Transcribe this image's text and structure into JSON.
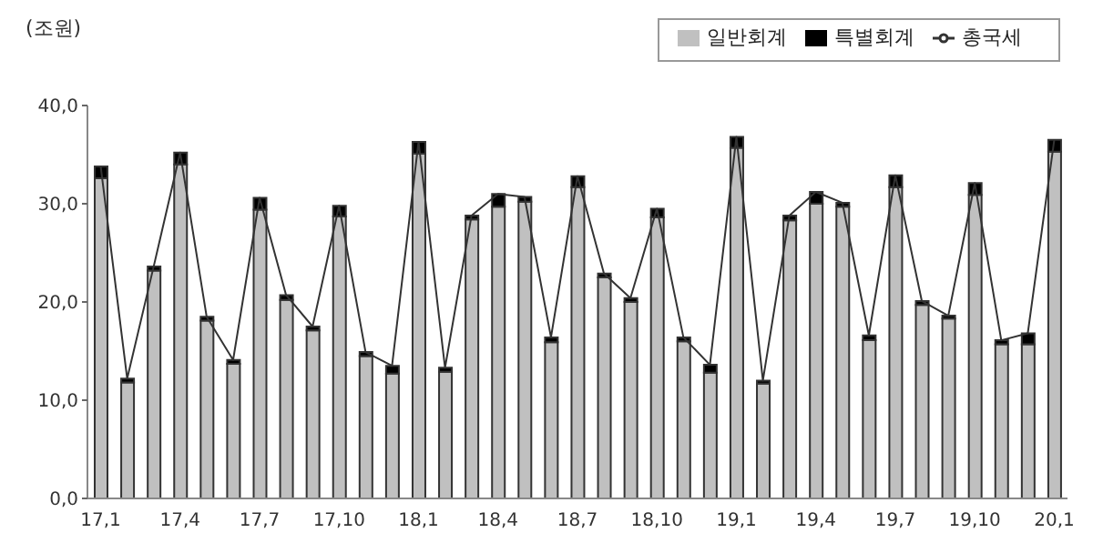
{
  "chart_data": {
    "type": "bar",
    "stacked": true,
    "ylabel": "(조원)",
    "categories": [
      "17,1",
      null,
      null,
      "17,4",
      null,
      null,
      "17,7",
      null,
      null,
      "17,10",
      null,
      null,
      "18,1",
      null,
      null,
      "18,4",
      null,
      null,
      "18,7",
      null,
      null,
      "18,10",
      null,
      null,
      "19,1",
      null,
      null,
      "19,4",
      null,
      null,
      "19,7",
      null,
      null,
      "19,10",
      null,
      null,
      "20,1"
    ],
    "series": [
      {
        "name": "일반회계",
        "color": "#c0c0c0",
        "values": [
          32.6,
          11.8,
          23.2,
          34.0,
          18.1,
          13.7,
          29.4,
          20.2,
          17.1,
          28.7,
          14.5,
          12.7,
          35.1,
          12.9,
          28.4,
          29.7,
          30.2,
          15.9,
          31.7,
          22.5,
          20.0,
          28.6,
          16.0,
          12.8,
          35.7,
          11.7,
          28.3,
          30.0,
          29.7,
          16.1,
          31.7,
          19.7,
          18.3,
          30.9,
          15.7,
          15.7,
          35.3
        ]
      },
      {
        "name": "특별회계",
        "color": "#000000",
        "values": [
          1.2,
          0.4,
          0.4,
          1.2,
          0.4,
          0.4,
          1.2,
          0.5,
          0.4,
          1.1,
          0.4,
          0.8,
          1.2,
          0.4,
          0.4,
          1.3,
          0.5,
          0.5,
          1.1,
          0.4,
          0.4,
          0.9,
          0.4,
          0.8,
          1.1,
          0.3,
          0.5,
          1.2,
          0.4,
          0.5,
          1.2,
          0.4,
          0.3,
          1.2,
          0.4,
          1.1,
          1.2
        ]
      },
      {
        "name": "총국세",
        "type": "line",
        "color": "#333333",
        "values": [
          33.8,
          12.2,
          23.6,
          35.2,
          18.5,
          14.1,
          30.6,
          20.7,
          17.5,
          29.8,
          14.9,
          13.5,
          36.3,
          13.3,
          28.8,
          31.0,
          30.7,
          16.4,
          32.8,
          22.9,
          20.4,
          29.5,
          16.4,
          13.6,
          36.8,
          12.0,
          28.8,
          31.2,
          30.1,
          16.6,
          32.9,
          20.1,
          18.6,
          32.1,
          16.1,
          16.8,
          36.5
        ]
      }
    ],
    "ylim": [
      0,
      40
    ],
    "yticks": [
      {
        "value": 0,
        "label": "0,0"
      },
      {
        "value": 10,
        "label": "10,0"
      },
      {
        "value": 20,
        "label": "20,0"
      },
      {
        "value": 30,
        "label": "30,0"
      },
      {
        "value": 40,
        "label": "40,0"
      }
    ],
    "legend": "top right",
    "grid": false,
    "marker": "none"
  }
}
